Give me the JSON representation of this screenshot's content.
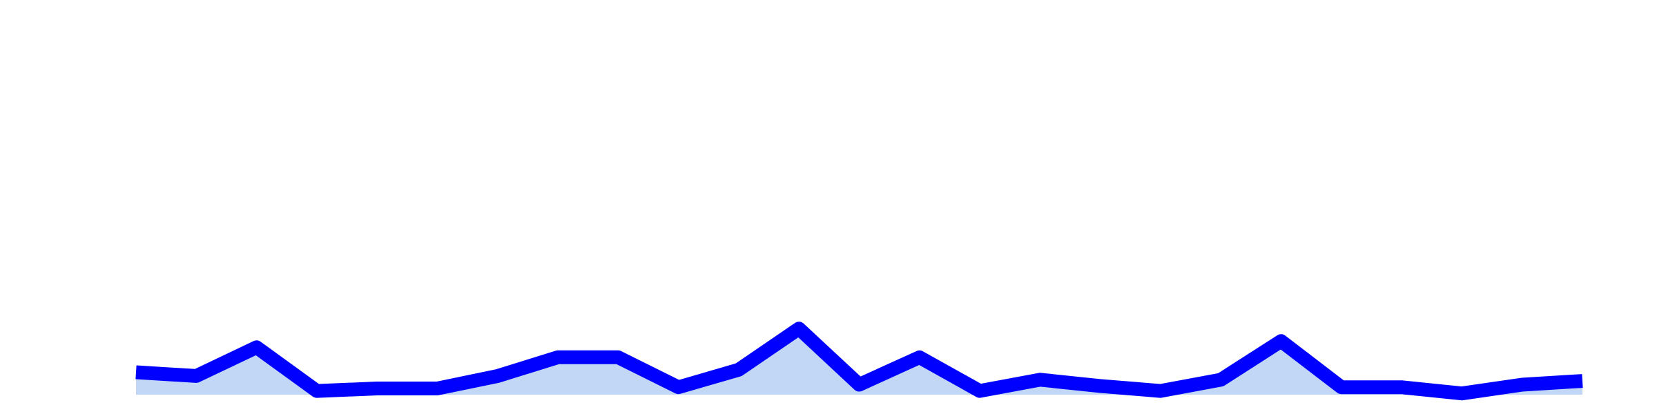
{
  "chart_data": {
    "type": "area",
    "title": "",
    "xlabel": "",
    "ylabel": "",
    "grid": false,
    "legend": "none",
    "x": [
      1,
      2,
      3,
      4,
      5,
      6,
      7,
      8,
      9,
      10,
      11,
      12,
      13,
      14,
      15,
      16,
      17,
      18,
      19,
      20,
      21,
      22,
      23,
      24,
      25
    ],
    "series": [
      {
        "values": [
          1.8,
          1.5,
          3.8,
          0.3,
          0.5,
          0.5,
          1.5,
          3.0,
          3.0,
          0.6,
          2.0,
          5.3,
          0.8,
          3.0,
          0.3,
          1.2,
          0.7,
          0.3,
          1.2,
          4.3,
          0.6,
          0.6,
          0.1,
          0.8,
          1.1
        ],
        "line_color": "#0000ff",
        "fill_color": "#c2d6f5"
      }
    ],
    "ylim": [
      0,
      30
    ]
  }
}
